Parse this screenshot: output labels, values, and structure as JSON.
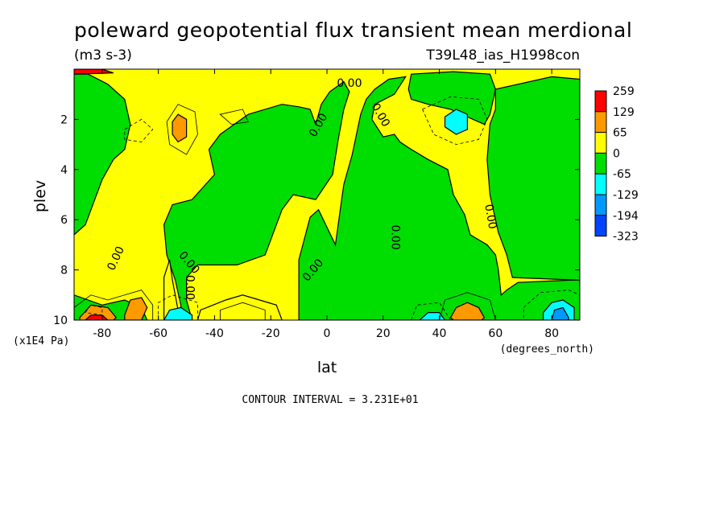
{
  "chart_data": {
    "type": "contour",
    "title": "poleward geopotential flux transient mean merdional",
    "units": "(m3 s-3)",
    "dataset": "T39L48_ias_H1998con",
    "xlabel": "lat",
    "x_units": "(degrees_north)",
    "ylabel": "plev",
    "y_units": "(x1E4 Pa)",
    "xlim": [
      -90,
      90
    ],
    "ylim": [
      10,
      0
    ],
    "xticks": [
      -80,
      -60,
      -40,
      -20,
      0,
      20,
      40,
      60,
      80
    ],
    "yticks": [
      2,
      4,
      6,
      8,
      10
    ],
    "contour_interval": "CONTOUR INTERVAL = 3.231E+01",
    "zero_label": "0.00",
    "legend": {
      "levels": [
        "259",
        "129",
        "65",
        "0",
        "-65",
        "-129",
        "-194",
        "-323"
      ],
      "colors": [
        "#ff0000",
        "#ff9900",
        "#ffff00",
        "#00dd00",
        "#00ffff",
        "#0099ff",
        "#0044ff"
      ]
    },
    "colors": {
      "positive": "#ffff00",
      "negative": "#00dd00",
      "strong_positive": "#ff9900",
      "max_positive": "#ff0000",
      "strong_negative": "#00ffff",
      "stronger_negative": "#0099ff"
    },
    "green_regions": [
      [
        [
          -90,
          0.2
        ],
        [
          -85,
          0.2
        ],
        [
          -78,
          0.6
        ],
        [
          -72,
          1.2
        ],
        [
          -70,
          2.2
        ],
        [
          -72,
          3.2
        ],
        [
          -76,
          3.6
        ],
        [
          -80,
          4.4
        ],
        [
          -86,
          6.2
        ],
        [
          -90,
          6.6
        ]
      ],
      [
        [
          -52,
          10
        ],
        [
          -52,
          9.4
        ],
        [
          -54,
          8.4
        ],
        [
          -57,
          7.4
        ],
        [
          -58,
          6.2
        ],
        [
          -55,
          5.4
        ],
        [
          -48,
          5.2
        ],
        [
          -40,
          4.2
        ],
        [
          -42,
          3.2
        ],
        [
          -38,
          2.6
        ],
        [
          -28,
          1.8
        ],
        [
          -16,
          1.4
        ],
        [
          -10,
          1.5
        ],
        [
          -6,
          1.6
        ],
        [
          -4,
          2.2
        ],
        [
          -2,
          1.4
        ],
        [
          1,
          0.9
        ],
        [
          6,
          0.5
        ],
        [
          8,
          0.9
        ],
        [
          6,
          1.6
        ],
        [
          4,
          2.8
        ],
        [
          2,
          4.2
        ],
        [
          -4,
          5.2
        ],
        [
          -12,
          5.0
        ],
        [
          -16,
          5.6
        ],
        [
          -20,
          6.8
        ],
        [
          -22,
          7.4
        ],
        [
          -32,
          7.8
        ],
        [
          -46,
          7.8
        ],
        [
          -50,
          8.3
        ],
        [
          -50,
          9.2
        ],
        [
          -48,
          10
        ]
      ],
      [
        [
          -10,
          7.6
        ],
        [
          -6,
          5.9
        ],
        [
          -3,
          5.6
        ],
        [
          0,
          6.3
        ],
        [
          3,
          7.0
        ],
        [
          5,
          5.4
        ],
        [
          6,
          4.6
        ],
        [
          9,
          3.4
        ],
        [
          12,
          1.8
        ],
        [
          14,
          1.2
        ],
        [
          17,
          0.8
        ],
        [
          22,
          0.4
        ],
        [
          28,
          0.3
        ],
        [
          24,
          1.0
        ],
        [
          17,
          1.4
        ],
        [
          16,
          2.0
        ],
        [
          20,
          2.7
        ],
        [
          24,
          2.6
        ],
        [
          26,
          2.9
        ],
        [
          30,
          3.2
        ],
        [
          36,
          3.6
        ],
        [
          43,
          4.0
        ],
        [
          45,
          5.0
        ],
        [
          49,
          5.8
        ],
        [
          51,
          6.6
        ],
        [
          57,
          7.0
        ],
        [
          60,
          7.4
        ],
        [
          61,
          8.0
        ],
        [
          62,
          9.0
        ],
        [
          64,
          8.8
        ],
        [
          68,
          8.5
        ],
        [
          88,
          8.4
        ],
        [
          90,
          8.4
        ],
        [
          90,
          10
        ],
        [
          -10,
          10
        ]
      ],
      [
        [
          60,
          0.8
        ],
        [
          80,
          0.3
        ],
        [
          90,
          0.4
        ],
        [
          90,
          8.4
        ],
        [
          88,
          8.4
        ],
        [
          66,
          8.3
        ],
        [
          64,
          7.4
        ],
        [
          61,
          6.5
        ],
        [
          58,
          5.0
        ],
        [
          57,
          3.6
        ],
        [
          58,
          2.2
        ],
        [
          60,
          1.6
        ]
      ],
      [
        [
          29,
          0.8
        ],
        [
          30,
          0.2
        ],
        [
          45,
          0.1
        ],
        [
          58,
          0.2
        ],
        [
          60,
          0.8
        ],
        [
          58,
          1.8
        ],
        [
          56,
          2.2
        ],
        [
          52,
          2.0
        ],
        [
          44,
          1.6
        ],
        [
          36,
          1.4
        ],
        [
          30,
          1.2
        ]
      ],
      [
        [
          -90,
          9.0
        ],
        [
          -80,
          9.4
        ],
        [
          -72,
          9.2
        ],
        [
          -66,
          9.5
        ],
        [
          -64,
          10
        ],
        [
          -90,
          10
        ]
      ]
    ],
    "yellow_islands": [
      [
        [
          -45,
          9.6
        ],
        [
          -36,
          9.2
        ],
        [
          -30,
          9.0
        ],
        [
          -24,
          9.2
        ],
        [
          -18,
          9.4
        ],
        [
          -16,
          10
        ],
        [
          -46,
          10
        ]
      ],
      [
        [
          -58,
          9.6
        ],
        [
          -58,
          8.3
        ],
        [
          -56,
          7.6
        ],
        [
          -55,
          8.4
        ],
        [
          -53,
          9.6
        ],
        [
          -54,
          10
        ],
        [
          -58,
          10
        ]
      ]
    ],
    "orange_regions": [
      [
        [
          -55,
          2.1
        ],
        [
          -53,
          1.8
        ],
        [
          -50,
          2.0
        ],
        [
          -50,
          2.7
        ],
        [
          -53,
          2.9
        ],
        [
          -55,
          2.6
        ]
      ],
      [
        [
          -88,
          9.9
        ],
        [
          -84,
          9.4
        ],
        [
          -78,
          9.5
        ],
        [
          -75,
          9.9
        ],
        [
          -76,
          10
        ],
        [
          -88,
          10
        ]
      ],
      [
        [
          -72,
          9.8
        ],
        [
          -70,
          9.2
        ],
        [
          -66,
          9.1
        ],
        [
          -64,
          9.5
        ],
        [
          -66,
          10
        ],
        [
          -72,
          10
        ]
      ],
      [
        [
          44,
          9.9
        ],
        [
          46,
          9.5
        ],
        [
          50,
          9.3
        ],
        [
          54,
          9.5
        ],
        [
          56,
          9.9
        ],
        [
          55,
          10
        ],
        [
          45,
          10
        ]
      ]
    ],
    "red_regions": [
      [
        [
          -86,
          10
        ],
        [
          -84,
          9.8
        ],
        [
          -80,
          9.8
        ],
        [
          -78,
          10
        ]
      ],
      [
        [
          -90,
          0
        ],
        [
          -80,
          0
        ],
        [
          -76,
          0.15
        ],
        [
          -90,
          0.2
        ]
      ]
    ],
    "cyan_regions": [
      [
        [
          42,
          1.9
        ],
        [
          46,
          1.6
        ],
        [
          50,
          1.8
        ],
        [
          50,
          2.4
        ],
        [
          46,
          2.6
        ],
        [
          42,
          2.3
        ]
      ],
      [
        [
          -58,
          10
        ],
        [
          -56,
          9.6
        ],
        [
          -52,
          9.5
        ],
        [
          -48,
          9.8
        ],
        [
          -48,
          10
        ]
      ],
      [
        [
          33,
          10
        ],
        [
          36,
          9.7
        ],
        [
          40,
          9.7
        ],
        [
          42,
          10
        ]
      ],
      [
        [
          77,
          9.7
        ],
        [
          80,
          9.3
        ],
        [
          84,
          9.2
        ],
        [
          88,
          9.5
        ],
        [
          88,
          10
        ],
        [
          77,
          10
        ]
      ]
    ],
    "blue_regions": [
      [
        [
          80,
          10
        ],
        [
          81,
          9.6
        ],
        [
          84,
          9.5
        ],
        [
          86,
          9.9
        ],
        [
          86,
          10
        ]
      ]
    ]
  }
}
